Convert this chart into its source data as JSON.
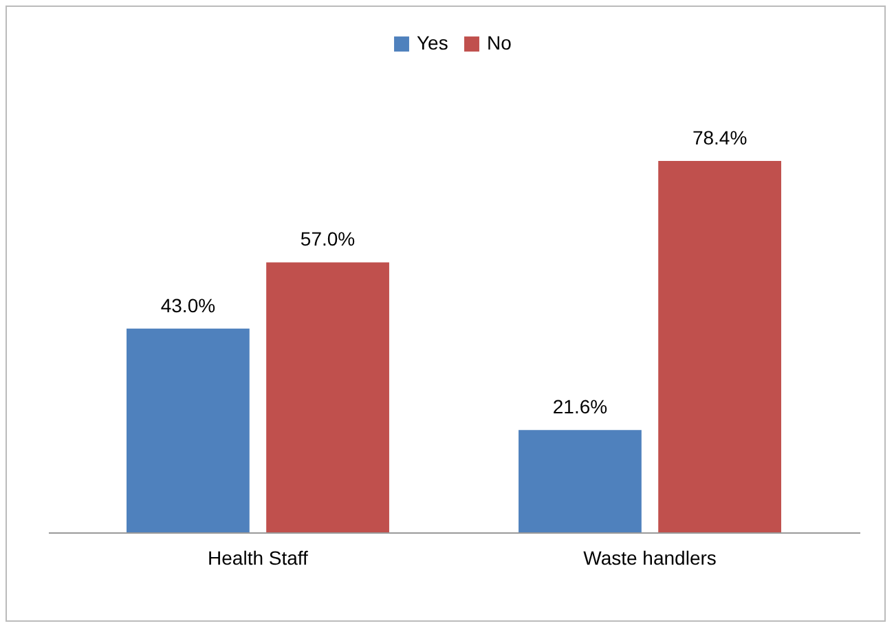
{
  "chart_data": {
    "type": "bar",
    "categories": [
      "Health Staff",
      "Waste handlers"
    ],
    "series": [
      {
        "name": "Yes",
        "color": "#4f81bd",
        "values": [
          43.0,
          21.6
        ],
        "value_labels": [
          "43.0%",
          "21.6%"
        ]
      },
      {
        "name": "No",
        "color": "#c0504d",
        "values": [
          57.0,
          78.4
        ],
        "value_labels": [
          "57.0%",
          "78.4%"
        ]
      }
    ],
    "legend": "top"
  }
}
